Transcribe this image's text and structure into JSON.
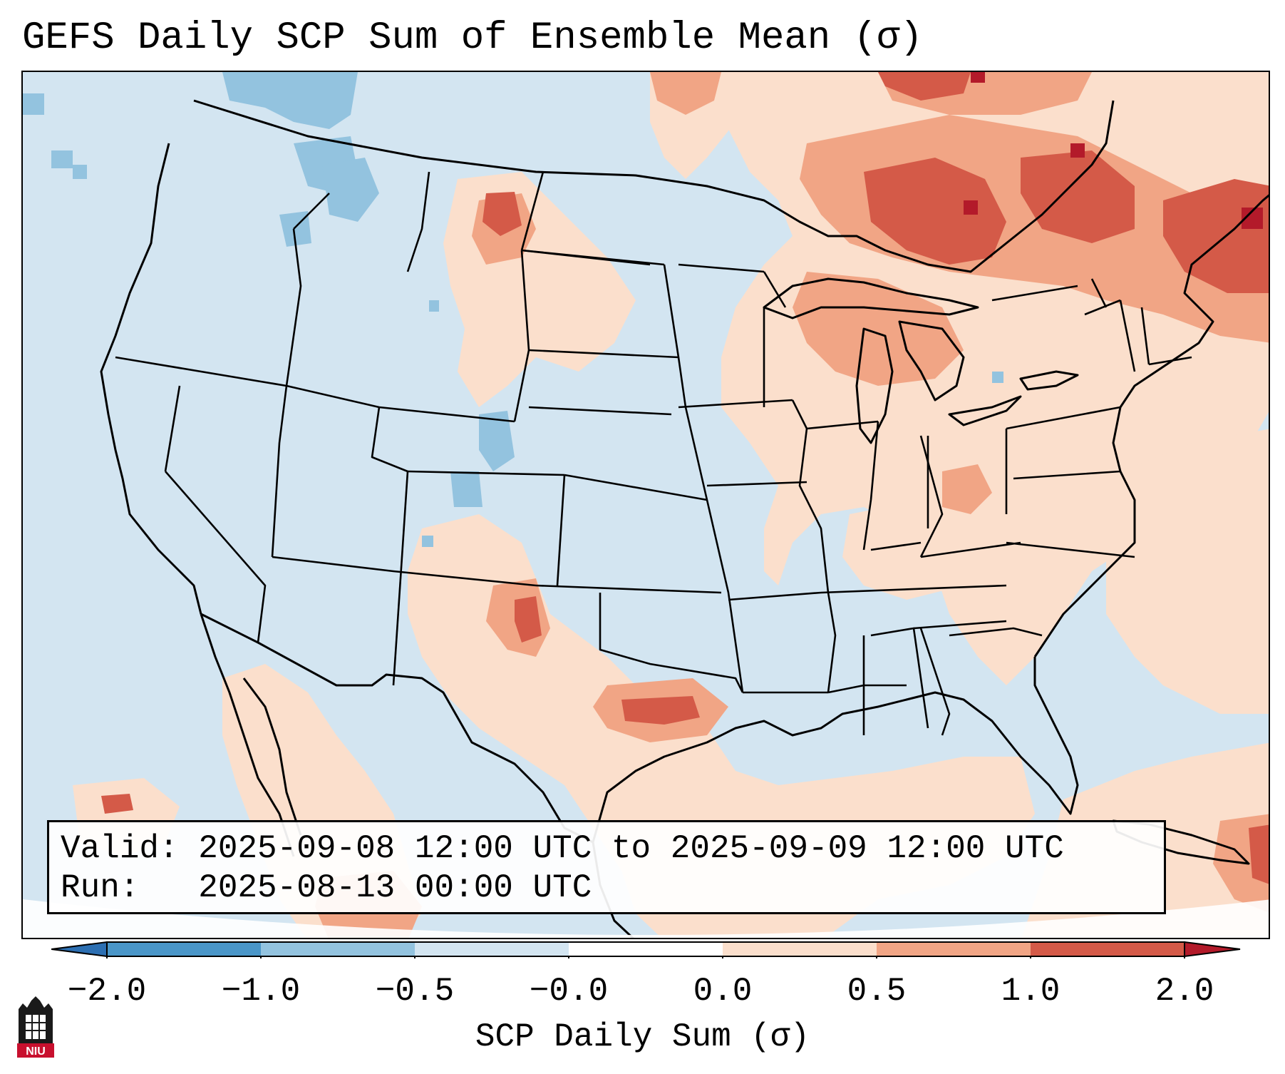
{
  "title": "GEFS Daily SCP Sum of Ensemble Mean (σ)",
  "info": {
    "valid_line": "Valid: 2025-09-08 12:00 UTC to 2025-09-09 12:00 UTC",
    "run_line": "Run:   2025-08-13 00:00 UTC"
  },
  "colorbar": {
    "label": "SCP Daily Sum (σ)",
    "ticks": [
      "−2.0",
      "−1.0",
      "−0.5",
      "−0.0",
      "0.0",
      "0.5",
      "1.0",
      "2.0"
    ],
    "colors": {
      "neg2": "#2c6fb2",
      "neg1": "#4a96c8",
      "neg05": "#93c3df",
      "neg0": "#d3e5f1",
      "pos0": "#fbdfcc",
      "pos05": "#f1a585",
      "pos1": "#d45a48",
      "pos2": "#b31a2a"
    }
  },
  "map": {
    "background_color": "#d3e5f1",
    "outside_color": "#ffffff",
    "border_color": "#000000"
  },
  "logo": {
    "text": "NIU",
    "color": "#c8102e"
  }
}
